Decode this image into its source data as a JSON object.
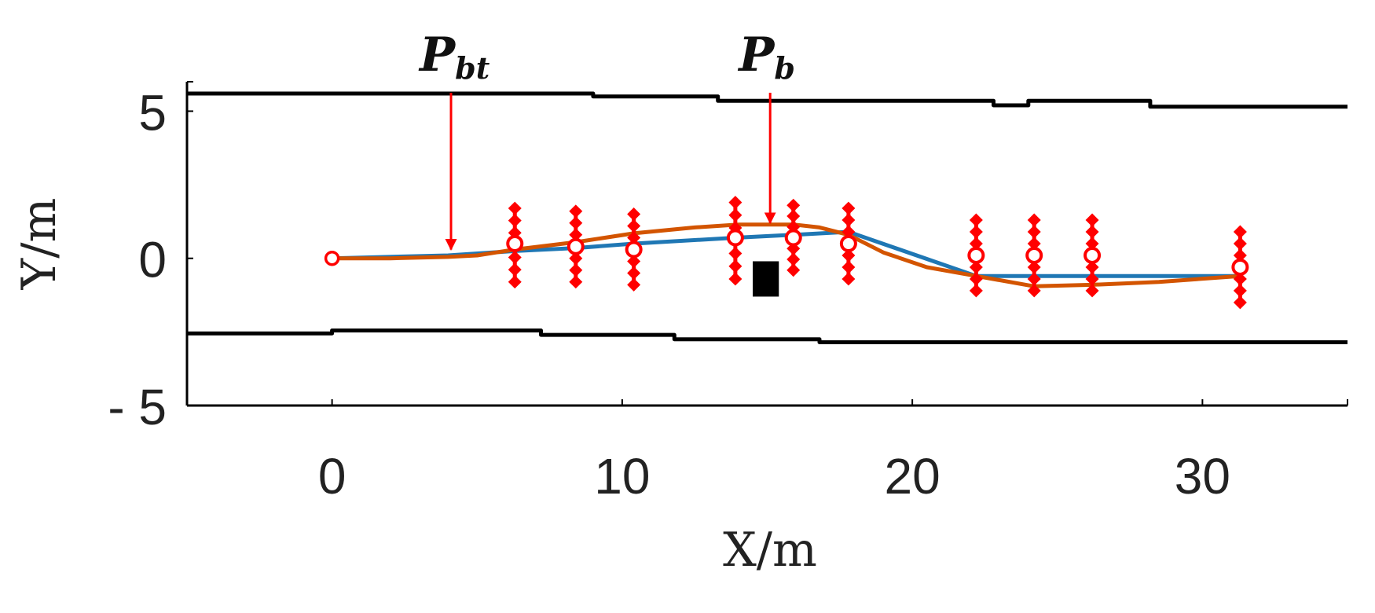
{
  "chart_data": {
    "type": "line",
    "xlabel": "X/m",
    "ylabel": "Y/m",
    "xlim": [
      -5,
      35
    ],
    "ylim": [
      -5,
      6
    ],
    "x_ticks": [
      {
        "value": 0,
        "label": "0"
      },
      {
        "value": 10,
        "label": "10"
      },
      {
        "value": 20,
        "label": "20"
      },
      {
        "value": 30,
        "label": "30"
      }
    ],
    "y_ticks": [
      {
        "value": 5,
        "label": "5"
      },
      {
        "value": 0,
        "label": "0"
      },
      {
        "value": -5,
        "label": "- 5"
      }
    ],
    "grid": false,
    "colors": {
      "boundary": "#000000",
      "reference_path": "#1f77b4",
      "smoothed_path": "#d35400",
      "samples": "#ff0000",
      "annotation": "#ff0000",
      "obstacle": "#000000"
    },
    "series": [
      {
        "role": "upper-boundary",
        "x": [
          -5,
          9,
          9,
          13.3,
          13.3,
          22.8,
          22.8,
          24,
          24,
          28.2,
          28.2,
          35
        ],
        "y": [
          5.6,
          5.6,
          5.5,
          5.5,
          5.35,
          5.35,
          5.2,
          5.2,
          5.35,
          5.35,
          5.15,
          5.15
        ]
      },
      {
        "role": "lower-boundary",
        "x": [
          -5,
          0,
          0,
          7.2,
          7.2,
          11.8,
          11.8,
          16.8,
          16.8,
          35
        ],
        "y": [
          -2.55,
          -2.55,
          -2.45,
          -2.45,
          -2.6,
          -2.6,
          -2.75,
          -2.75,
          -2.85,
          -2.85
        ]
      },
      {
        "role": "reference-path",
        "x": [
          0,
          4,
          6.3,
          8.4,
          10.4,
          13.9,
          15.9,
          17.8,
          22.2,
          24.2,
          26.2,
          31.3
        ],
        "y": [
          0,
          0.1,
          0.25,
          0.35,
          0.5,
          0.7,
          0.8,
          0.9,
          -0.6,
          -0.6,
          -0.6,
          -0.6
        ]
      },
      {
        "role": "smoothed-path",
        "x": [
          0,
          2,
          4,
          5,
          6.3,
          8.4,
          10.4,
          12.5,
          14,
          15,
          15.9,
          16.8,
          17.8,
          19,
          20.5,
          22.2,
          24.2,
          26.2,
          28.5,
          31.3
        ],
        "y": [
          0,
          0,
          0.05,
          0.1,
          0.3,
          0.55,
          0.85,
          1.05,
          1.15,
          1.15,
          1.15,
          1.05,
          0.8,
          0.2,
          -0.3,
          -0.6,
          -0.95,
          -0.9,
          -0.8,
          -0.6
        ]
      }
    ],
    "samples": [
      {
        "x": 6.3,
        "y_min": -0.8,
        "y_max": 1.7,
        "center": 0.5
      },
      {
        "x": 8.4,
        "y_min": -0.8,
        "y_max": 1.6,
        "center": 0.4
      },
      {
        "x": 10.4,
        "y_min": -0.9,
        "y_max": 1.5,
        "center": 0.3
      },
      {
        "x": 13.9,
        "y_min": -0.7,
        "y_max": 1.9,
        "center": 0.7
      },
      {
        "x": 15.9,
        "y_min": -0.4,
        "y_max": 1.8,
        "center": 0.7
      },
      {
        "x": 17.8,
        "y_min": -0.7,
        "y_max": 1.7,
        "center": 0.5
      },
      {
        "x": 22.2,
        "y_min": -1.1,
        "y_max": 1.3,
        "center": 0.1
      },
      {
        "x": 24.2,
        "y_min": -1.1,
        "y_max": 1.3,
        "center": 0.1
      },
      {
        "x": 26.2,
        "y_min": -1.1,
        "y_max": 1.3,
        "center": 0.1
      },
      {
        "x": 31.3,
        "y_min": -1.5,
        "y_max": 0.9,
        "center": -0.3
      }
    ],
    "start_point": {
      "x": 0,
      "y": 0
    },
    "obstacle": {
      "x_min": 14.5,
      "x_max": 15.4,
      "y_min": -1.3,
      "y_max": -0.1
    },
    "annotations": [
      {
        "base": "P",
        "sub": "bt",
        "x": 4.1,
        "y_top": 6.0,
        "y_bottom": 0.3
      },
      {
        "base": "P",
        "sub": "b",
        "x": 15.1,
        "y_top": 6.0,
        "y_bottom": 1.2
      }
    ]
  }
}
